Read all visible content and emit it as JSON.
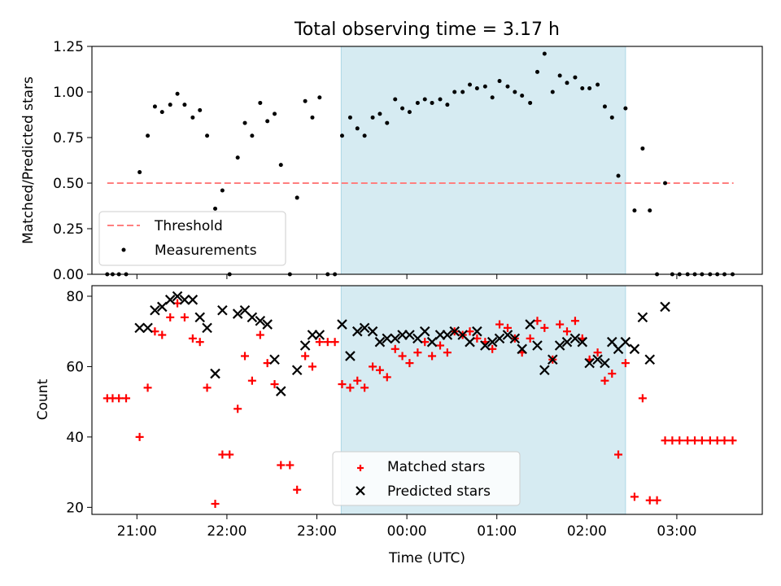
{
  "figure_title": "Total observing time = 3.17 h",
  "xlabel": "Time (UTC)",
  "xticks": [
    {
      "t": 21.0,
      "label": "21:00"
    },
    {
      "t": 22.0,
      "label": "22:00"
    },
    {
      "t": 23.0,
      "label": "23:00"
    },
    {
      "t": 24.0,
      "label": "00:00"
    },
    {
      "t": 25.0,
      "label": "01:00"
    },
    {
      "t": 26.0,
      "label": "02:00"
    },
    {
      "t": 27.0,
      "label": "03:00"
    }
  ],
  "xlim": [
    20.5,
    27.95
  ],
  "colors": {
    "span": "#add8e6",
    "threshold": "#ff7f7f",
    "measurements": "#000000",
    "matched": "#ff0000",
    "predicted": "#000000"
  },
  "chart_data": [
    {
      "type": "scatter",
      "ylabel": "Matched/Predicted stars",
      "ylim": [
        0,
        1.25
      ],
      "yticks": [
        "0.00",
        "0.25",
        "0.50",
        "0.75",
        "1.00",
        "1.25"
      ],
      "shaded_span": [
        23.27,
        26.43
      ],
      "legend": {
        "position": "lower-left",
        "entries": [
          "Threshold",
          "Measurements"
        ]
      },
      "threshold": {
        "name": "Threshold",
        "y": 0.5,
        "x": [
          20.67,
          27.63
        ]
      },
      "series": [
        {
          "name": "Measurements",
          "points": [
            [
              20.67,
              0
            ],
            [
              20.73,
              0
            ],
            [
              20.8,
              0
            ],
            [
              20.88,
              0
            ],
            [
              21.03,
              0.56
            ],
            [
              21.12,
              0.76
            ],
            [
              21.2,
              0.92
            ],
            [
              21.28,
              0.89
            ],
            [
              21.37,
              0.93
            ],
            [
              21.45,
              0.99
            ],
            [
              21.53,
              0.93
            ],
            [
              21.62,
              0.86
            ],
            [
              21.7,
              0.9
            ],
            [
              21.78,
              0.76
            ],
            [
              21.87,
              0.36
            ],
            [
              21.95,
              0.46
            ],
            [
              22.03,
              0
            ],
            [
              22.12,
              0.64
            ],
            [
              22.2,
              0.83
            ],
            [
              22.28,
              0.76
            ],
            [
              22.37,
              0.94
            ],
            [
              22.45,
              0.84
            ],
            [
              22.53,
              0.88
            ],
            [
              22.6,
              0.6
            ],
            [
              22.7,
              0
            ],
            [
              22.78,
              0.42
            ],
            [
              22.87,
              0.95
            ],
            [
              22.95,
              0.86
            ],
            [
              23.03,
              0.97
            ],
            [
              23.12,
              0
            ],
            [
              23.2,
              0
            ],
            [
              23.28,
              0.76
            ],
            [
              23.37,
              0.86
            ],
            [
              23.45,
              0.8
            ],
            [
              23.53,
              0.76
            ],
            [
              23.62,
              0.86
            ],
            [
              23.7,
              0.88
            ],
            [
              23.78,
              0.83
            ],
            [
              23.87,
              0.96
            ],
            [
              23.95,
              0.91
            ],
            [
              24.03,
              0.89
            ],
            [
              24.12,
              0.94
            ],
            [
              24.2,
              0.96
            ],
            [
              24.28,
              0.94
            ],
            [
              24.37,
              0.96
            ],
            [
              24.45,
              0.93
            ],
            [
              24.53,
              1.0
            ],
            [
              24.62,
              1.0
            ],
            [
              24.7,
              1.04
            ],
            [
              24.78,
              1.02
            ],
            [
              24.87,
              1.03
            ],
            [
              24.95,
              0.97
            ],
            [
              25.03,
              1.06
            ],
            [
              25.12,
              1.03
            ],
            [
              25.2,
              1.0
            ],
            [
              25.28,
              0.98
            ],
            [
              25.37,
              0.94
            ],
            [
              25.45,
              1.11
            ],
            [
              25.53,
              1.21
            ],
            [
              25.62,
              1.0
            ],
            [
              25.7,
              1.09
            ],
            [
              25.78,
              1.05
            ],
            [
              25.87,
              1.08
            ],
            [
              25.95,
              1.02
            ],
            [
              26.03,
              1.02
            ],
            [
              26.12,
              1.04
            ],
            [
              26.2,
              0.92
            ],
            [
              26.28,
              0.86
            ],
            [
              26.35,
              0.54
            ],
            [
              26.43,
              0.91
            ],
            [
              26.53,
              0.35
            ],
            [
              26.62,
              0.69
            ],
            [
              26.7,
              0.35
            ],
            [
              26.78,
              0
            ],
            [
              26.87,
              0.5
            ],
            [
              26.95,
              0
            ],
            [
              27.03,
              0
            ],
            [
              27.12,
              0
            ],
            [
              27.2,
              0
            ],
            [
              27.28,
              0
            ],
            [
              27.37,
              0
            ],
            [
              27.45,
              0
            ],
            [
              27.53,
              0
            ],
            [
              27.62,
              0
            ]
          ]
        }
      ]
    },
    {
      "type": "scatter",
      "ylabel": "Count",
      "ylim": [
        18,
        83
      ],
      "yticks": [
        "20",
        "40",
        "60",
        "80"
      ],
      "shaded_span": [
        23.27,
        26.43
      ],
      "legend": {
        "position": "lower-center",
        "entries": [
          "Matched stars",
          "Predicted stars"
        ]
      },
      "series": [
        {
          "name": "Matched stars",
          "marker": "plus",
          "points": [
            [
              20.67,
              51
            ],
            [
              20.73,
              51
            ],
            [
              20.8,
              51
            ],
            [
              20.88,
              51
            ],
            [
              21.03,
              40
            ],
            [
              21.12,
              54
            ],
            [
              21.2,
              70
            ],
            [
              21.28,
              69
            ],
            [
              21.37,
              74
            ],
            [
              21.45,
              78
            ],
            [
              21.53,
              74
            ],
            [
              21.62,
              68
            ],
            [
              21.7,
              67
            ],
            [
              21.78,
              54
            ],
            [
              21.87,
              21
            ],
            [
              21.95,
              35
            ],
            [
              22.03,
              35
            ],
            [
              22.12,
              48
            ],
            [
              22.2,
              63
            ],
            [
              22.28,
              56
            ],
            [
              22.37,
              69
            ],
            [
              22.45,
              61
            ],
            [
              22.53,
              55
            ],
            [
              22.6,
              32
            ],
            [
              22.7,
              32
            ],
            [
              22.78,
              25
            ],
            [
              22.87,
              63
            ],
            [
              22.95,
              60
            ],
            [
              23.03,
              67
            ],
            [
              23.12,
              67
            ],
            [
              23.2,
              67
            ],
            [
              23.28,
              55
            ],
            [
              23.37,
              54
            ],
            [
              23.45,
              56
            ],
            [
              23.53,
              54
            ],
            [
              23.62,
              60
            ],
            [
              23.7,
              59
            ],
            [
              23.78,
              57
            ],
            [
              23.87,
              65
            ],
            [
              23.95,
              63
            ],
            [
              24.03,
              61
            ],
            [
              24.12,
              64
            ],
            [
              24.2,
              67
            ],
            [
              24.28,
              63
            ],
            [
              24.37,
              66
            ],
            [
              24.45,
              64
            ],
            [
              24.53,
              70
            ],
            [
              24.62,
              69
            ],
            [
              24.7,
              70
            ],
            [
              24.78,
              68
            ],
            [
              24.87,
              67
            ],
            [
              24.95,
              65
            ],
            [
              25.03,
              72
            ],
            [
              25.12,
              71
            ],
            [
              25.2,
              68
            ],
            [
              25.28,
              64
            ],
            [
              25.37,
              68
            ],
            [
              25.45,
              73
            ],
            [
              25.53,
              71
            ],
            [
              25.62,
              62
            ],
            [
              25.7,
              72
            ],
            [
              25.78,
              70
            ],
            [
              25.87,
              73
            ],
            [
              25.95,
              68
            ],
            [
              26.03,
              62
            ],
            [
              26.12,
              64
            ],
            [
              26.2,
              56
            ],
            [
              26.28,
              58
            ],
            [
              26.35,
              35
            ],
            [
              26.43,
              61
            ],
            [
              26.53,
              23
            ],
            [
              26.62,
              51
            ],
            [
              26.7,
              22
            ],
            [
              26.78,
              22
            ],
            [
              26.87,
              39
            ],
            [
              26.95,
              39
            ],
            [
              27.03,
              39
            ],
            [
              27.12,
              39
            ],
            [
              27.2,
              39
            ],
            [
              27.28,
              39
            ],
            [
              27.37,
              39
            ],
            [
              27.45,
              39
            ],
            [
              27.53,
              39
            ],
            [
              27.62,
              39
            ]
          ]
        },
        {
          "name": "Predicted stars",
          "marker": "x",
          "points": [
            [
              21.03,
              71
            ],
            [
              21.12,
              71
            ],
            [
              21.2,
              76
            ],
            [
              21.28,
              77
            ],
            [
              21.37,
              79
            ],
            [
              21.45,
              80
            ],
            [
              21.53,
              79
            ],
            [
              21.62,
              79
            ],
            [
              21.7,
              74
            ],
            [
              21.78,
              71
            ],
            [
              21.87,
              58
            ],
            [
              21.95,
              76
            ],
            [
              22.12,
              75
            ],
            [
              22.2,
              76
            ],
            [
              22.28,
              74
            ],
            [
              22.37,
              73
            ],
            [
              22.45,
              72
            ],
            [
              22.53,
              62
            ],
            [
              22.6,
              53
            ],
            [
              22.78,
              59
            ],
            [
              22.87,
              66
            ],
            [
              22.95,
              69
            ],
            [
              23.03,
              69
            ],
            [
              23.28,
              72
            ],
            [
              23.37,
              63
            ],
            [
              23.45,
              70
            ],
            [
              23.53,
              71
            ],
            [
              23.62,
              70
            ],
            [
              23.7,
              67
            ],
            [
              23.78,
              68
            ],
            [
              23.87,
              68
            ],
            [
              23.95,
              69
            ],
            [
              24.03,
              69
            ],
            [
              24.12,
              68
            ],
            [
              24.2,
              70
            ],
            [
              24.28,
              67
            ],
            [
              24.37,
              69
            ],
            [
              24.45,
              69
            ],
            [
              24.53,
              70
            ],
            [
              24.62,
              69
            ],
            [
              24.7,
              67
            ],
            [
              24.78,
              70
            ],
            [
              24.87,
              66
            ],
            [
              24.95,
              67
            ],
            [
              25.03,
              68
            ],
            [
              25.12,
              69
            ],
            [
              25.2,
              68
            ],
            [
              25.28,
              65
            ],
            [
              25.37,
              72
            ],
            [
              25.45,
              66
            ],
            [
              25.53,
              59
            ],
            [
              25.62,
              62
            ],
            [
              25.7,
              66
            ],
            [
              25.78,
              67
            ],
            [
              25.87,
              68
            ],
            [
              25.95,
              67
            ],
            [
              26.03,
              61
            ],
            [
              26.12,
              62
            ],
            [
              26.2,
              61
            ],
            [
              26.28,
              67
            ],
            [
              26.35,
              65
            ],
            [
              26.43,
              67
            ],
            [
              26.53,
              65
            ],
            [
              26.62,
              74
            ],
            [
              26.7,
              62
            ],
            [
              26.87,
              77
            ]
          ]
        }
      ]
    }
  ]
}
